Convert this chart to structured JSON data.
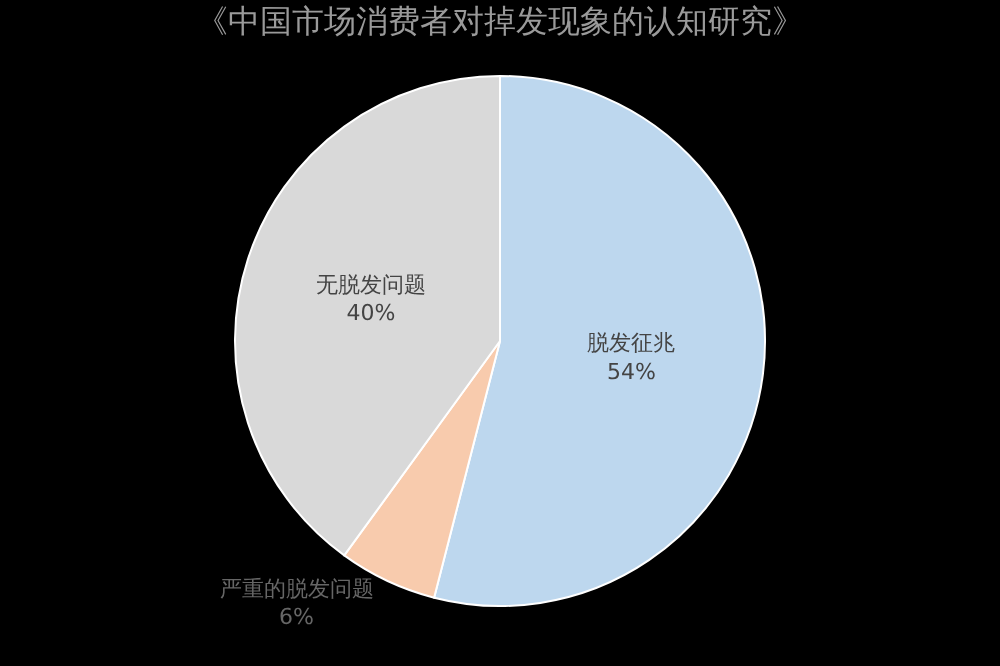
{
  "chart_data": {
    "type": "pie",
    "title": "《中国市场消费者对掉发现象的认知研究》",
    "categories": [
      "脱发征兆",
      "严重的脱发问题",
      "无脱发问题"
    ],
    "values": [
      54,
      6,
      40
    ],
    "value_labels": [
      "54%",
      "6%",
      "40%"
    ],
    "colors": [
      "#bdd7ee",
      "#f8cbad",
      "#d9d9d9"
    ],
    "legend": false
  }
}
